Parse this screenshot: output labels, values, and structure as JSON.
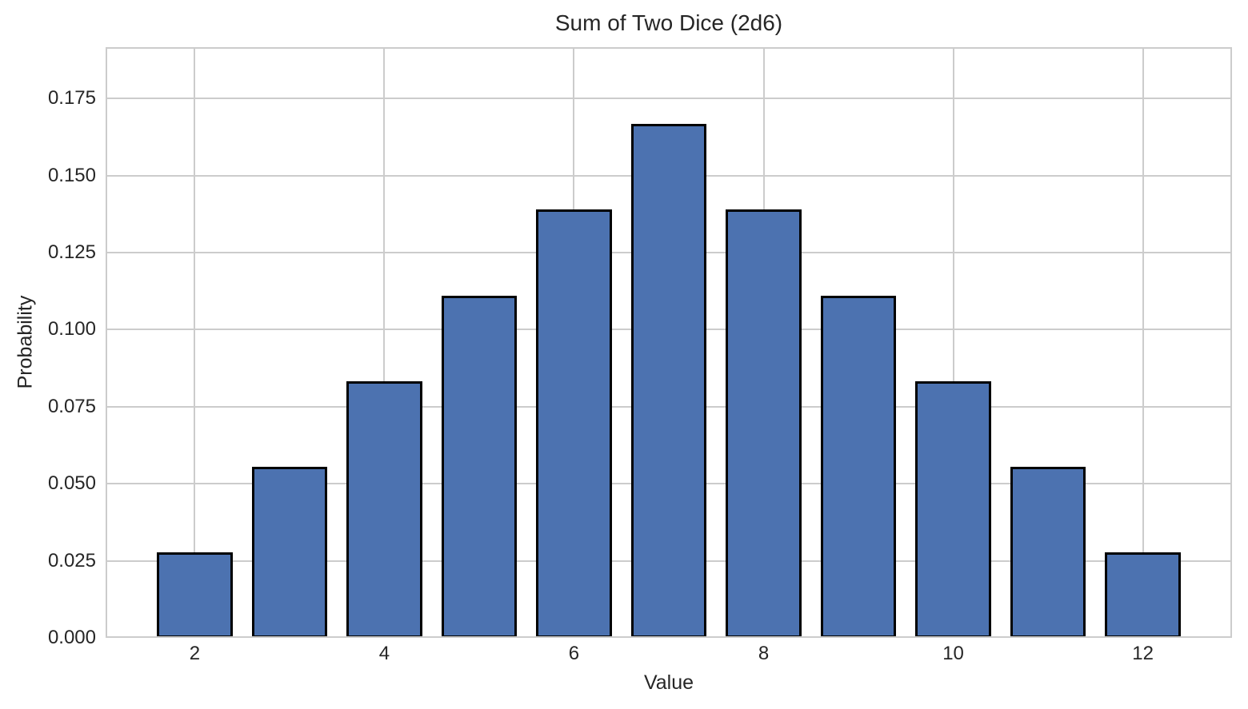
{
  "chart_data": {
    "type": "bar",
    "title": "Sum of Two Dice (2d6)",
    "xlabel": "Value",
    "ylabel": "Probability",
    "categories": [
      2,
      3,
      4,
      5,
      6,
      7,
      8,
      9,
      10,
      11,
      12
    ],
    "values": [
      0.0278,
      0.0556,
      0.0833,
      0.1111,
      0.1389,
      0.1667,
      0.1389,
      0.1111,
      0.0833,
      0.0556,
      0.0278
    ],
    "bar_width": 0.8,
    "xlim": [
      1.06,
      12.94
    ],
    "ylim": [
      0,
      0.19167
    ],
    "xticks": [
      2,
      4,
      6,
      8,
      10,
      12
    ],
    "xtick_labels": [
      "2",
      "4",
      "6",
      "8",
      "10",
      "12"
    ],
    "yticks": [
      0,
      0.025,
      0.05,
      0.075,
      0.1,
      0.125,
      0.15,
      0.175
    ],
    "ytick_labels": [
      "0.000",
      "0.025",
      "0.050",
      "0.075",
      "0.100",
      "0.125",
      "0.150",
      "0.175"
    ],
    "grid": true,
    "legend_position": "none",
    "colors": {
      "bar_fill": "#4C72B0",
      "bar_edge": "#000000",
      "grid": "#CCCCCC",
      "spine": "#CCCCCC",
      "text": "#262626",
      "background": "#FFFFFF"
    }
  }
}
